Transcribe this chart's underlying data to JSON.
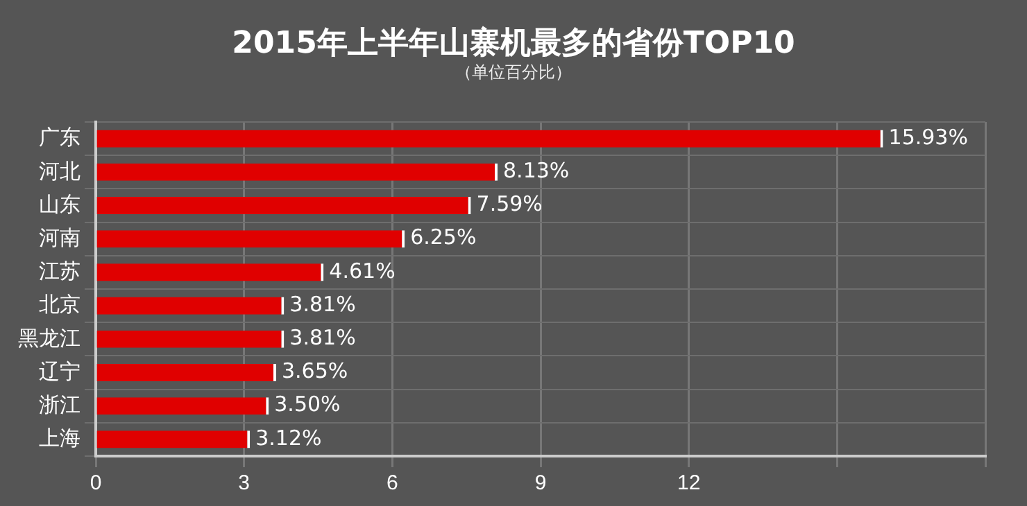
{
  "chart_data": {
    "type": "bar",
    "orientation": "horizontal",
    "title": "2015年上半年山寨机最多的省份TOP10",
    "subtitle": "（单位百分比）",
    "categories": [
      "广东",
      "河北",
      "山东",
      "河南",
      "江苏",
      "北京",
      "黑龙江",
      "辽宁",
      "浙江",
      "上海"
    ],
    "values": [
      15.93,
      8.13,
      7.59,
      6.25,
      4.61,
      3.81,
      3.81,
      3.65,
      3.5,
      3.12
    ],
    "value_labels": [
      "15.93%",
      "8.13%",
      "7.59%",
      "6.25%",
      "4.61%",
      "3.81%",
      "3.81%",
      "3.65%",
      "3.50%",
      "3.12%"
    ],
    "color": "#e00000",
    "xlim": [
      0,
      18
    ],
    "xticks": [
      0,
      3,
      6,
      9,
      12,
      {
        "value": 15,
        "label": null
      },
      {
        "value": 18,
        "label": null
      }
    ],
    "grid": true,
    "legend": false
  }
}
